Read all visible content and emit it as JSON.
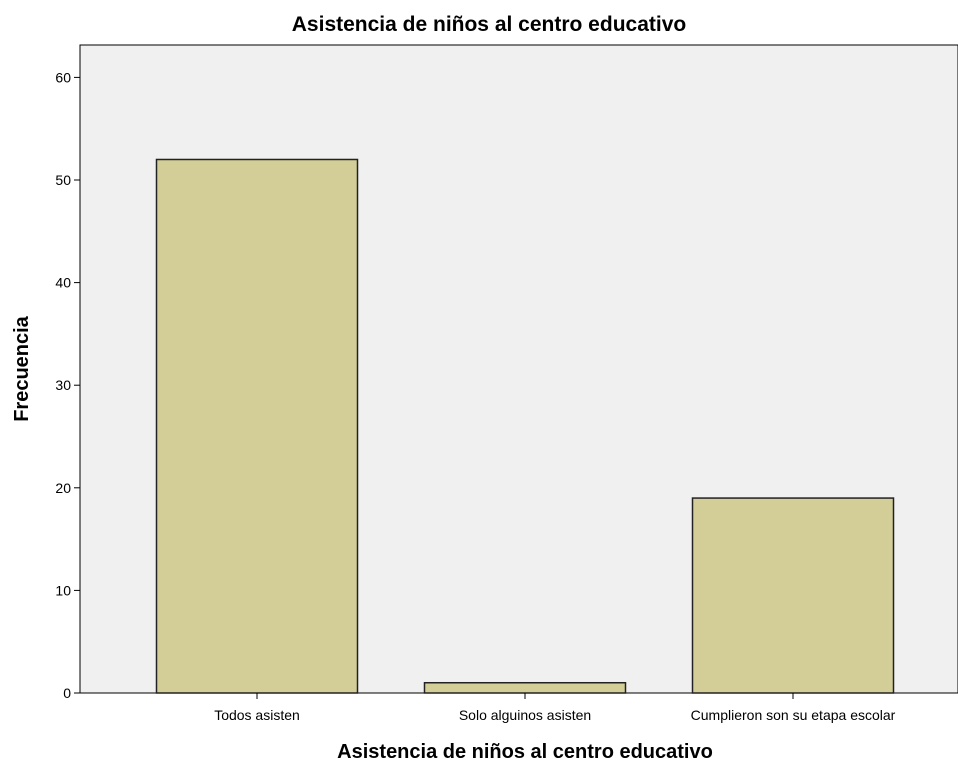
{
  "chart_data": {
    "type": "bar",
    "title": "Asistencia de niños al centro educativo",
    "xlabel": "Asistencia de niños al centro educativo",
    "ylabel": "Frecuencia",
    "categories": [
      "Todos asisten",
      "Solo alguinos asisten",
      "Cumplieron son su etapa escolar"
    ],
    "values": [
      52,
      1,
      19
    ],
    "ylim": [
      0,
      63
    ],
    "yticks": [
      0,
      10,
      20,
      30,
      40,
      50,
      60
    ],
    "grid": false,
    "legend": "none",
    "colors": {
      "bar_fill": "#d3ce97",
      "bar_stroke": "#222222",
      "plot_background": "#f0f0f0",
      "axis": "#000000"
    }
  }
}
